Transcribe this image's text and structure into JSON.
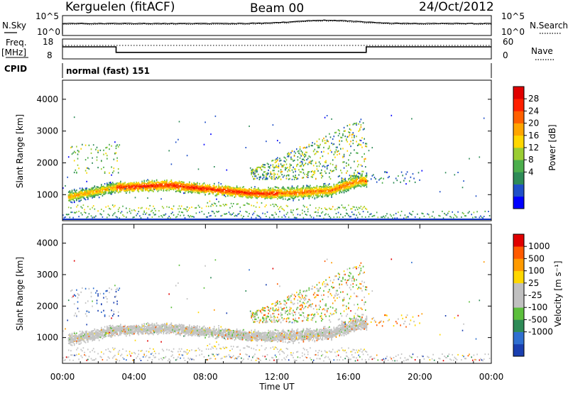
{
  "header": {
    "station": "Kerguelen (fitACF)",
    "beam": "Beam 00",
    "date": "24/Oct/2012"
  },
  "noise_panel": {
    "left_label": "N.Sky",
    "right_label": "N.Search",
    "left_ticks": [
      "10^5",
      "10^0"
    ],
    "right_ticks": [
      "10^5",
      "10^0"
    ]
  },
  "freq_panel": {
    "left_label_line1": "Freq.",
    "left_label_line2": "[MHz]",
    "left_ticks": [
      "18",
      "8"
    ],
    "right_ticks": [
      "60",
      "0"
    ],
    "right_label": "Nave",
    "freq_series": {
      "x_hours": [
        0,
        3.0,
        3.0,
        17.0,
        17.0,
        24.0
      ],
      "mhz": [
        14.5,
        14.5,
        10.6,
        10.6,
        14.5,
        14.5
      ]
    }
  },
  "cpid": {
    "label": "CPID",
    "value": "normal (fast) 151"
  },
  "chart_data": [
    {
      "type": "heatmap",
      "quantity": "Power",
      "ylabel": "Slant Range [km]",
      "ylim": [
        180,
        4600
      ],
      "yticks": [
        "1000",
        "2000",
        "3000",
        "4000"
      ],
      "colorbar_label": "Power [dB]",
      "colorbar_ticks": [
        "28",
        "24",
        "20",
        "16",
        "12",
        "8",
        "4"
      ],
      "colorbar_colors": [
        "#0000ff",
        "#2050c8",
        "#2e8b57",
        "#4cae4c",
        "#9acd32",
        "#ffd700",
        "#ffa500",
        "#ff6000",
        "#ff2000",
        "#e00000"
      ],
      "features": [
        {
          "name": "main band",
          "x_hours": [
            0.3,
            3,
            6,
            9,
            11,
            13,
            15,
            16.5
          ],
          "range_km": [
            950,
            1250,
            1320,
            1150,
            1050,
            1080,
            1150,
            1450
          ]
        },
        {
          "name": "upper scatter",
          "x_hours": [
            11,
            14,
            17
          ],
          "range_km": [
            1900,
            2900,
            3500
          ]
        },
        {
          "name": "early patch",
          "x_hours": [
            0.5,
            3
          ],
          "range_km": [
            1700,
            2600
          ]
        }
      ]
    },
    {
      "type": "heatmap",
      "quantity": "Velocity",
      "ylabel": "Slant Range [km]",
      "xlabel": "Time UT",
      "ylim": [
        180,
        4600
      ],
      "yticks": [
        "1000",
        "2000",
        "3000",
        "4000"
      ],
      "xlim": [
        0,
        24
      ],
      "xticks": [
        "00:00",
        "04:00",
        "08:00",
        "12:00",
        "16:00",
        "20:00",
        "00:00"
      ],
      "colorbar_label": "Velocity [m s⁻¹]",
      "colorbar_ticks": [
        "1000",
        "500",
        "100",
        "25",
        "-25",
        "-100",
        "-500",
        "-1000"
      ],
      "colorbar_colors": [
        "#1a3fb0",
        "#2f6fd0",
        "#2e8b57",
        "#5cbf3c",
        "#c0c0c0",
        "#c0c0c0",
        "#ffd700",
        "#ff9a00",
        "#ff5a00",
        "#e00000"
      ]
    }
  ]
}
